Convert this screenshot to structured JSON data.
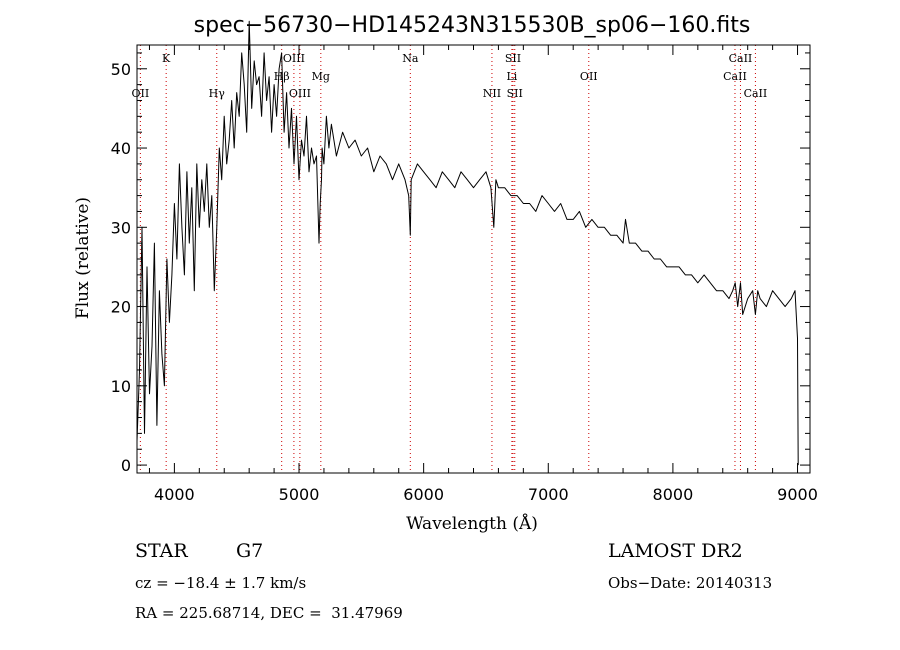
{
  "info": {
    "object_class": "STAR",
    "subclass": "G7",
    "cz": "cz = −18.4 ± 1.7 km/s",
    "coords": "RA = 225.68714, DEC =  31.47969",
    "survey": "LAMOST DR2",
    "obs_date": "Obs−Date: 20140313"
  },
  "chart_data": {
    "type": "line",
    "title": "spec−56730−HD145243N315530B_sp06−160.fits",
    "xlabel": "Wavelength (Å)",
    "ylabel": "Flux (relative)",
    "xlim": [
      3700,
      9100
    ],
    "ylim": [
      -1,
      53
    ],
    "xticks": [
      4000,
      5000,
      6000,
      7000,
      8000,
      9000
    ],
    "yticks": [
      0,
      10,
      20,
      30,
      40,
      50
    ],
    "grid": false,
    "line_color": "#000000",
    "marker_color": "#cc0000",
    "spectral_lines": [
      {
        "name": "OII",
        "wavelength": 3727,
        "row": 3
      },
      {
        "name": "K",
        "wavelength": 3934,
        "row": 1
      },
      {
        "name": "Hγ",
        "wavelength": 4340,
        "row": 3
      },
      {
        "name": "Hβ",
        "wavelength": 4861,
        "row": 2
      },
      {
        "name": "OIII",
        "wavelength": 4959,
        "row": 1
      },
      {
        "name": "OIII",
        "wavelength": 5007,
        "row": 3
      },
      {
        "name": "Mg",
        "wavelength": 5175,
        "row": 2
      },
      {
        "name": "Na",
        "wavelength": 5893,
        "row": 1
      },
      {
        "name": "NII",
        "wavelength": 6548,
        "row": 3
      },
      {
        "name": "SII",
        "wavelength": 6717,
        "row": 1
      },
      {
        "name": "Li",
        "wavelength": 6708,
        "row": 2
      },
      {
        "name": "SII",
        "wavelength": 6731,
        "row": 3
      },
      {
        "name": "OII",
        "wavelength": 7325,
        "row": 2
      },
      {
        "name": "CaII",
        "wavelength": 8498,
        "row": 2
      },
      {
        "name": "CaII",
        "wavelength": 8542,
        "row": 1
      },
      {
        "name": "CaII",
        "wavelength": 8662,
        "row": 3
      }
    ],
    "series": [
      {
        "x": [
          3700,
          3720,
          3740,
          3760,
          3780,
          3800,
          3820,
          3840,
          3860,
          3880,
          3900,
          3920,
          3940,
          3960,
          3980,
          4000,
          4020,
          4040,
          4060,
          4080,
          4100,
          4120,
          4140,
          4160,
          4180,
          4200,
          4220,
          4240,
          4260,
          4280,
          4300,
          4320,
          4340,
          4360,
          4380,
          4400,
          4420,
          4440,
          4460,
          4480,
          4500,
          4520,
          4540,
          4560,
          4580,
          4600,
          4620,
          4640,
          4660,
          4680,
          4700,
          4720,
          4740,
          4760,
          4780,
          4800,
          4820,
          4840,
          4860,
          4880,
          4900,
          4920,
          4940,
          4960,
          4980,
          5000,
          5020,
          5040,
          5060,
          5080,
          5100,
          5120,
          5140,
          5160,
          5170,
          5180,
          5185,
          5200,
          5220,
          5240,
          5260,
          5280,
          5300,
          5350,
          5400,
          5450,
          5500,
          5550,
          5600,
          5650,
          5700,
          5750,
          5800,
          5850,
          5880,
          5893,
          5900,
          5950,
          6000,
          6050,
          6100,
          6150,
          6200,
          6250,
          6300,
          6350,
          6400,
          6450,
          6500,
          6540,
          6563,
          6580,
          6600,
          6650,
          6700,
          6750,
          6800,
          6850,
          6900,
          6950,
          7000,
          7050,
          7100,
          7150,
          7200,
          7250,
          7300,
          7350,
          7400,
          7450,
          7500,
          7550,
          7600,
          7620,
          7650,
          7700,
          7750,
          7800,
          7850,
          7900,
          7950,
          8000,
          8050,
          8100,
          8150,
          8200,
          8250,
          8300,
          8350,
          8400,
          8450,
          8480,
          8500,
          8520,
          8542,
          8560,
          8600,
          8640,
          8662,
          8680,
          8700,
          8750,
          8800,
          8850,
          8900,
          8950,
          8980,
          9000,
          9005
        ],
        "y": [
          3,
          12,
          30,
          4,
          25,
          9,
          15,
          28,
          5,
          22,
          14,
          10,
          26,
          18,
          24,
          33,
          26,
          38,
          30,
          24,
          37,
          28,
          35,
          22,
          38,
          30,
          36,
          32,
          38,
          30,
          34,
          22,
          30,
          40,
          36,
          44,
          38,
          41,
          46,
          40,
          47,
          44,
          52,
          48,
          42,
          56,
          45,
          51,
          48,
          49,
          44,
          52,
          46,
          49,
          42,
          48,
          44,
          50,
          52,
          42,
          47,
          40,
          45,
          38,
          44,
          36,
          41,
          39,
          44,
          37,
          40,
          38,
          39,
          28,
          33,
          36,
          40,
          38,
          44,
          40,
          43,
          41,
          39,
          42,
          40,
          41,
          39,
          40,
          37,
          39,
          38,
          36,
          38,
          36,
          34,
          29,
          36,
          38,
          37,
          36,
          35,
          37,
          36,
          35,
          37,
          36,
          35,
          36,
          37,
          35,
          30,
          36,
          35,
          35,
          34,
          34,
          33,
          33,
          32,
          34,
          33,
          32,
          33,
          31,
          31,
          32,
          30,
          31,
          30,
          30,
          29,
          29,
          28,
          31,
          28,
          28,
          27,
          27,
          26,
          26,
          25,
          25,
          25,
          24,
          24,
          23,
          24,
          23,
          22,
          22,
          21,
          22,
          23,
          20,
          23,
          19,
          21,
          22,
          19,
          22,
          21,
          20,
          22,
          21,
          20,
          21,
          22,
          16,
          0
        ]
      }
    ]
  }
}
